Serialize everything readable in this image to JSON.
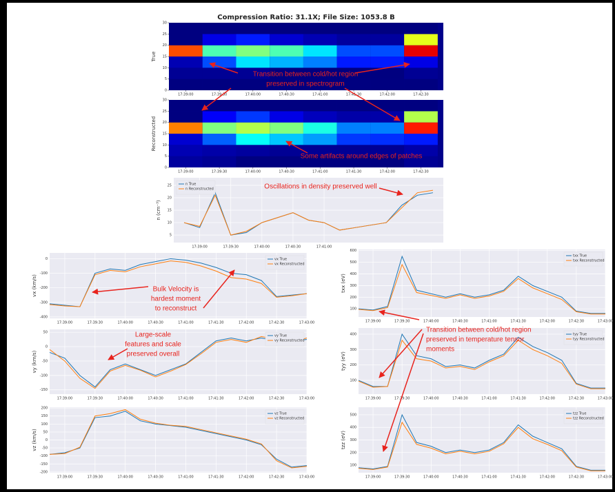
{
  "title": "Compression Ratio: 31.1X; File Size: 1053.8 B",
  "annotations": [
    {
      "lines": [
        "Transition between cold/hot region",
        "preserved in spectrogram"
      ]
    },
    {
      "lines": [
        "Some artifacts around edges of patches"
      ]
    },
    {
      "lines": [
        "Oscillations in density preserved well"
      ]
    },
    {
      "lines": [
        "Bulk Velocity is",
        "hardest moment",
        "to reconstruct"
      ]
    },
    {
      "lines": [
        "Large-scale",
        "features and scale",
        "preserved overall"
      ]
    },
    {
      "lines": [
        "Transition between cold/hot region",
        "preserved in temperature tensor",
        "moments"
      ]
    }
  ],
  "chart_data": [
    {
      "type": "heatmap",
      "ylabel": "True",
      "x_edges": [
        "17:38:45",
        "17:39:15",
        "17:39:45",
        "17:40:15",
        "17:40:45",
        "17:41:15",
        "17:41:45",
        "17:42:15",
        "17:42:45"
      ],
      "y_edges": [
        0,
        5,
        10,
        15,
        20,
        25,
        30
      ],
      "xlim": [
        "17:38:45",
        "17:42:50"
      ],
      "ylim": [
        0,
        30
      ],
      "xticks": [
        "17:39:00",
        "17:39:30",
        "17:40:00",
        "17:40:30",
        "17:41:00",
        "17:41:30",
        "17:42:00",
        "17:42:30"
      ],
      "yticks": [
        0,
        5,
        10,
        15,
        20,
        25,
        30
      ],
      "z": [
        [
          0,
          0.02,
          0.05,
          0.8,
          0,
          0
        ],
        [
          0,
          0.02,
          0.2,
          0.45,
          0.1,
          0
        ],
        [
          0,
          0.02,
          0.35,
          0.5,
          0.15,
          0
        ],
        [
          0,
          0,
          0.3,
          0.45,
          0.08,
          0
        ],
        [
          0,
          0,
          0.25,
          0.35,
          0.05,
          0
        ],
        [
          0,
          0,
          0.15,
          0.2,
          0.03,
          0
        ],
        [
          0,
          0,
          0.15,
          0.2,
          0.03,
          0
        ],
        [
          0,
          0.02,
          0.1,
          0.9,
          0.6,
          0
        ]
      ]
    },
    {
      "type": "heatmap",
      "ylabel": "Reconstructed",
      "x_edges": [
        "17:38:45",
        "17:39:15",
        "17:39:45",
        "17:40:15",
        "17:40:45",
        "17:41:15",
        "17:41:45",
        "17:42:15",
        "17:42:45"
      ],
      "y_edges": [
        0,
        5,
        10,
        15,
        20,
        25,
        30
      ],
      "xlim": [
        "17:38:45",
        "17:42:50"
      ],
      "ylim": [
        0,
        30
      ],
      "xticks": [
        "17:39:00",
        "17:39:30",
        "17:40:00",
        "17:40:30",
        "17:41:00",
        "17:41:30",
        "17:42:00",
        "17:42:30"
      ],
      "yticks": [
        0,
        5,
        10,
        15,
        20,
        25,
        30
      ],
      "z": [
        [
          0.03,
          0.05,
          0.08,
          0.75,
          0,
          0
        ],
        [
          0.02,
          0.04,
          0.22,
          0.5,
          0.12,
          0
        ],
        [
          0,
          0.03,
          0.38,
          0.55,
          0.18,
          0
        ],
        [
          0,
          0.02,
          0.32,
          0.5,
          0.1,
          0
        ],
        [
          0,
          0.02,
          0.28,
          0.4,
          0.06,
          0
        ],
        [
          0,
          0.02,
          0.18,
          0.25,
          0.04,
          0
        ],
        [
          0,
          0.02,
          0.17,
          0.25,
          0.04,
          0
        ],
        [
          0.02,
          0.04,
          0.15,
          0.85,
          0.55,
          0
        ]
      ]
    },
    {
      "type": "line",
      "ylabel": "n (cm⁻³)",
      "legend": "upper left",
      "x": [
        "17:38:45",
        "17:39:00",
        "17:39:15",
        "17:39:30",
        "17:39:45",
        "17:40:00",
        "17:40:15",
        "17:40:30",
        "17:40:45",
        "17:41:00",
        "17:41:15",
        "17:41:30",
        "17:41:45",
        "17:42:00",
        "17:42:15",
        "17:42:30",
        "17:42:45"
      ],
      "xlim": [
        "17:38:35",
        "17:42:55"
      ],
      "ylim": [
        2,
        28
      ],
      "xticks": [
        "17:39:00",
        "17:39:30",
        "17:40:00",
        "17:40:30",
        "17:41:00"
      ],
      "yticks": [
        5,
        10,
        15,
        20,
        25
      ],
      "series": [
        {
          "name": "n True",
          "color": "#1f77b4",
          "values": [
            10,
            8,
            22,
            5,
            6,
            10,
            12,
            14,
            11,
            10,
            7,
            8,
            9,
            10,
            17,
            21,
            22
          ]
        },
        {
          "name": "n Reconstructed",
          "color": "#ff7f0e",
          "values": [
            10,
            8.5,
            21,
            5,
            6.5,
            10,
            12,
            14,
            11,
            10,
            7,
            8,
            9,
            10,
            16,
            22,
            23
          ]
        }
      ]
    },
    {
      "type": "line",
      "ylabel": "vx (km/s)",
      "legend": "upper right",
      "x": [
        "17:38:45",
        "17:39:00",
        "17:39:15",
        "17:39:30",
        "17:39:45",
        "17:40:00",
        "17:40:15",
        "17:40:30",
        "17:40:45",
        "17:41:00",
        "17:41:15",
        "17:41:30",
        "17:41:45",
        "17:42:00",
        "17:42:15",
        "17:42:30",
        "17:42:45",
        "17:43:00"
      ],
      "xlim": [
        "17:38:45",
        "17:43:00"
      ],
      "ylim": [
        -410,
        40
      ],
      "xticks": [
        "17:39:00",
        "17:39:30",
        "17:40:00",
        "17:40:30",
        "17:41:00",
        "17:41:30",
        "17:42:00",
        "17:42:30",
        "17:43:00"
      ],
      "yticks": [
        0,
        -100,
        -200,
        -300,
        -400
      ],
      "series": [
        {
          "name": "vx True",
          "color": "#1f77b4",
          "values": [
            -310,
            -320,
            -330,
            -100,
            -70,
            -80,
            -40,
            -20,
            0,
            -10,
            -30,
            -60,
            -100,
            -110,
            -150,
            -260,
            -250,
            -240
          ]
        },
        {
          "name": "vx Reconstructed",
          "color": "#ff7f0e",
          "values": [
            -315,
            -325,
            -330,
            -110,
            -80,
            -90,
            -55,
            -35,
            -15,
            -25,
            -50,
            -85,
            -130,
            -140,
            -170,
            -265,
            -255,
            -240
          ]
        }
      ]
    },
    {
      "type": "line",
      "ylabel": "vy (km/s)",
      "legend": "upper right",
      "x": [
        "17:38:45",
        "17:39:00",
        "17:39:15",
        "17:39:30",
        "17:39:45",
        "17:40:00",
        "17:40:15",
        "17:40:30",
        "17:40:45",
        "17:41:00",
        "17:41:15",
        "17:41:30",
        "17:41:45",
        "17:42:00",
        "17:42:15",
        "17:42:30",
        "17:42:45",
        "17:43:00"
      ],
      "xlim": [
        "17:38:45",
        "17:43:00"
      ],
      "ylim": [
        -165,
        60
      ],
      "xticks": [
        "17:39:00",
        "17:39:30",
        "17:40:00",
        "17:40:30",
        "17:41:00",
        "17:41:30",
        "17:42:00",
        "17:42:30",
        "17:43:00"
      ],
      "yticks": [
        50,
        0,
        -50,
        -100,
        -150
      ],
      "series": [
        {
          "name": "vy True",
          "color": "#1f77b4",
          "values": [
            -20,
            -40,
            -100,
            -140,
            -80,
            -60,
            -80,
            -100,
            -80,
            -60,
            -20,
            20,
            30,
            20,
            30,
            20,
            20,
            25
          ]
        },
        {
          "name": "vy Reconstructed",
          "color": "#ff7f0e",
          "values": [
            -10,
            -50,
            -110,
            -145,
            -85,
            -65,
            -82,
            -105,
            -85,
            -62,
            -25,
            15,
            25,
            15,
            35,
            25,
            15,
            30
          ]
        }
      ]
    },
    {
      "type": "line",
      "ylabel": "vz (km/s)",
      "legend": "upper right",
      "x": [
        "17:38:45",
        "17:39:00",
        "17:39:15",
        "17:39:30",
        "17:39:45",
        "17:40:00",
        "17:40:15",
        "17:40:30",
        "17:40:45",
        "17:41:00",
        "17:41:15",
        "17:41:30",
        "17:41:45",
        "17:42:00",
        "17:42:15",
        "17:42:30",
        "17:42:45",
        "17:43:00"
      ],
      "xlim": [
        "17:38:45",
        "17:43:00"
      ],
      "ylim": [
        -205,
        205
      ],
      "xticks": [
        "17:39:00",
        "17:39:30",
        "17:40:00",
        "17:40:30",
        "17:41:00",
        "17:41:30",
        "17:42:00",
        "17:42:30",
        "17:43:00"
      ],
      "yticks": [
        200,
        150,
        100,
        50,
        0,
        -50,
        -100,
        -150,
        -200
      ],
      "series": [
        {
          "name": "vz True",
          "color": "#1f77b4",
          "values": [
            -90,
            -80,
            -50,
            140,
            150,
            180,
            120,
            100,
            90,
            80,
            60,
            40,
            20,
            0,
            -30,
            -120,
            -170,
            -160
          ]
        },
        {
          "name": "vz Reconstructed",
          "color": "#ff7f0e",
          "values": [
            -90,
            -85,
            -45,
            150,
            165,
            190,
            130,
            105,
            92,
            85,
            65,
            45,
            25,
            5,
            -25,
            -130,
            -175,
            -165
          ]
        }
      ]
    },
    {
      "type": "line",
      "ylabel": "txx (eV)",
      "legend": "upper right",
      "x": [
        "17:38:45",
        "17:39:00",
        "17:39:15",
        "17:39:30",
        "17:39:45",
        "17:40:00",
        "17:40:15",
        "17:40:30",
        "17:40:45",
        "17:41:00",
        "17:41:15",
        "17:41:30",
        "17:41:45",
        "17:42:00",
        "17:42:15",
        "17:42:30",
        "17:42:45",
        "17:43:00"
      ],
      "xlim": [
        "17:38:45",
        "17:43:00"
      ],
      "ylim": [
        30,
        610
      ],
      "xticks": [
        "17:39:00",
        "17:39:30",
        "17:40:00",
        "17:40:30",
        "17:41:00",
        "17:41:30",
        "17:42:00",
        "17:42:30",
        "17:43:00"
      ],
      "yticks": [
        100,
        200,
        300,
        400,
        500,
        600
      ],
      "series": [
        {
          "name": "txx True",
          "color": "#1f77b4",
          "values": [
            100,
            90,
            120,
            550,
            260,
            230,
            200,
            230,
            200,
            220,
            260,
            380,
            300,
            250,
            200,
            80,
            60,
            60
          ]
        },
        {
          "name": "txx Reconstructed",
          "color": "#ff7f0e",
          "values": [
            95,
            85,
            110,
            480,
            240,
            215,
            190,
            220,
            190,
            210,
            250,
            360,
            280,
            230,
            180,
            75,
            55,
            55
          ]
        }
      ]
    },
    {
      "type": "line",
      "ylabel": "tyy (eV)",
      "legend": "upper right",
      "x": [
        "17:38:45",
        "17:39:00",
        "17:39:15",
        "17:39:30",
        "17:39:45",
        "17:40:00",
        "17:40:15",
        "17:40:30",
        "17:40:45",
        "17:41:00",
        "17:41:15",
        "17:41:30",
        "17:41:45",
        "17:42:00",
        "17:42:15",
        "17:42:30",
        "17:42:45",
        "17:43:00"
      ],
      "xlim": [
        "17:38:45",
        "17:43:00"
      ],
      "ylim": [
        10,
        440
      ],
      "xticks": [
        "17:39:00",
        "17:39:30",
        "17:40:00",
        "17:40:30",
        "17:41:00",
        "17:41:30",
        "17:42:00",
        "17:42:30",
        "17:43:00"
      ],
      "yticks": [
        100,
        200,
        300,
        400
      ],
      "series": [
        {
          "name": "tyy True",
          "color": "#1f77b4",
          "values": [
            100,
            60,
            60,
            400,
            260,
            240,
            190,
            200,
            180,
            230,
            270,
            380,
            320,
            280,
            230,
            80,
            50,
            50
          ]
        },
        {
          "name": "tyy Reconstructed",
          "color": "#ff7f0e",
          "values": [
            95,
            55,
            60,
            360,
            240,
            225,
            180,
            190,
            170,
            220,
            260,
            360,
            300,
            260,
            210,
            75,
            45,
            45
          ]
        }
      ]
    },
    {
      "type": "line",
      "ylabel": "tzz (eV)",
      "legend": "upper right",
      "x": [
        "17:38:45",
        "17:39:00",
        "17:39:15",
        "17:39:30",
        "17:39:45",
        "17:40:00",
        "17:40:15",
        "17:40:30",
        "17:40:45",
        "17:41:00",
        "17:41:15",
        "17:41:30",
        "17:41:45",
        "17:42:00",
        "17:42:15",
        "17:42:30",
        "17:42:45",
        "17:43:00"
      ],
      "xlim": [
        "17:38:45",
        "17:43:00"
      ],
      "ylim": [
        40,
        560
      ],
      "xticks": [
        "17:39:00",
        "17:39:30",
        "17:40:00",
        "17:40:30",
        "17:41:00",
        "17:41:30",
        "17:42:00",
        "17:42:30",
        "17:43:00"
      ],
      "yticks": [
        100,
        200,
        300,
        400,
        500
      ],
      "series": [
        {
          "name": "tzz True",
          "color": "#1f77b4",
          "values": [
            80,
            70,
            90,
            500,
            280,
            250,
            200,
            220,
            200,
            220,
            280,
            420,
            330,
            280,
            230,
            90,
            60,
            60
          ]
        },
        {
          "name": "tzz Reconstructed",
          "color": "#ff7f0e",
          "values": [
            75,
            65,
            85,
            440,
            265,
            235,
            190,
            210,
            190,
            210,
            270,
            400,
            310,
            265,
            215,
            85,
            55,
            55
          ]
        }
      ]
    }
  ]
}
